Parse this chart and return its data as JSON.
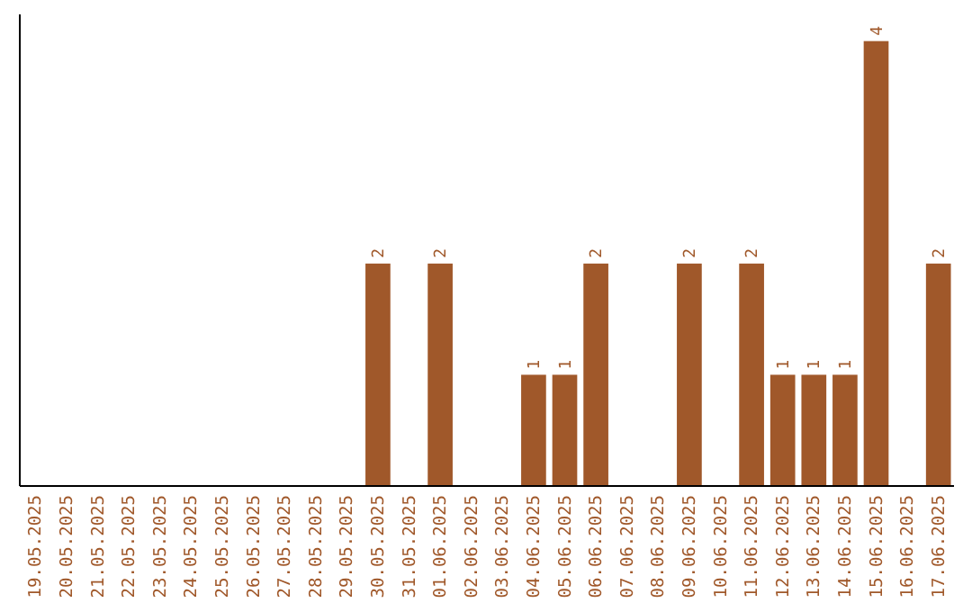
{
  "chart_data": {
    "type": "bar",
    "categories": [
      "19.05.2025",
      "20.05.2025",
      "21.05.2025",
      "22.05.2025",
      "23.05.2025",
      "24.05.2025",
      "25.05.2025",
      "26.05.2025",
      "27.05.2025",
      "28.05.2025",
      "29.05.2025",
      "30.05.2025",
      "31.05.2025",
      "01.06.2025",
      "02.06.2025",
      "03.06.2025",
      "04.06.2025",
      "05.06.2025",
      "06.06.2025",
      "07.06.2025",
      "08.06.2025",
      "09.06.2025",
      "10.06.2025",
      "11.06.2025",
      "12.06.2025",
      "13.06.2025",
      "14.06.2025",
      "15.06.2025",
      "16.06.2025",
      "17.06.2025"
    ],
    "values": [
      0,
      0,
      0,
      0,
      0,
      0,
      0,
      0,
      0,
      0,
      0,
      2,
      0,
      2,
      0,
      0,
      1,
      1,
      2,
      0,
      0,
      2,
      0,
      2,
      1,
      1,
      1,
      4,
      0,
      2
    ],
    "value_labels": [
      null,
      null,
      null,
      null,
      null,
      null,
      null,
      null,
      null,
      null,
      null,
      "2",
      null,
      "2",
      null,
      null,
      "1",
      "1",
      "2",
      null,
      null,
      "2",
      null,
      "2",
      "1",
      "1",
      "1",
      "4",
      null,
      "2"
    ],
    "color": "#a0582a",
    "tick_labels": "x",
    "grid": false
  }
}
